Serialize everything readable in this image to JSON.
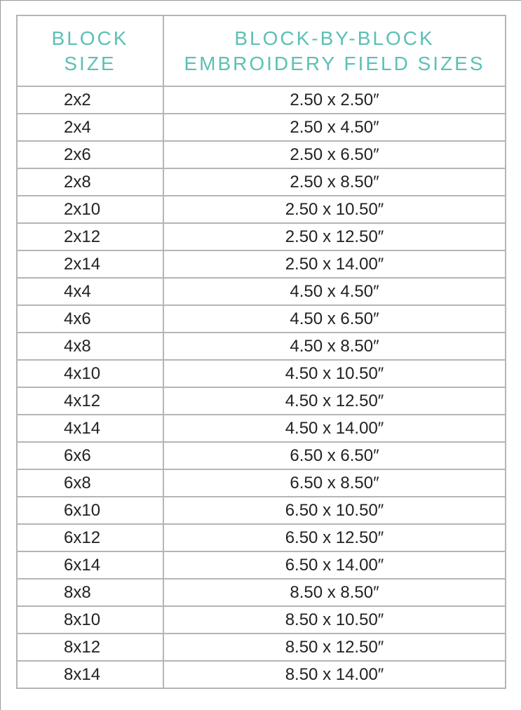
{
  "header": {
    "col1_line1": "BLOCK",
    "col1_line2": "SIZE",
    "col2_line1": "BLOCK-BY-BLOCK",
    "col2_line2": "EMBROIDERY FIELD SIZES"
  },
  "accent_color": "#5cc0b6",
  "rows": [
    [
      "2x2",
      "2.50 x 2.50″"
    ],
    [
      "2x4",
      "2.50 x 4.50″"
    ],
    [
      "2x6",
      "2.50 x 6.50″"
    ],
    [
      "2x8",
      "2.50 x 8.50″"
    ],
    [
      "2x10",
      "2.50 x 10.50″"
    ],
    [
      "2x12",
      "2.50 x 12.50″"
    ],
    [
      "2x14",
      "2.50 x 14.00″"
    ],
    [
      "4x4",
      "4.50 x 4.50″"
    ],
    [
      "4x6",
      "4.50 x 6.50″"
    ],
    [
      "4x8",
      "4.50 x 8.50″"
    ],
    [
      "4x10",
      "4.50 x 10.50″"
    ],
    [
      "4x12",
      "4.50 x 12.50″"
    ],
    [
      "4x14",
      "4.50 x 14.00″"
    ],
    [
      "6x6",
      "6.50 x 6.50″"
    ],
    [
      "6x8",
      "6.50 x 8.50″"
    ],
    [
      "6x10",
      "6.50 x 10.50″"
    ],
    [
      "6x12",
      "6.50 x 12.50″"
    ],
    [
      "6x14",
      "6.50 x 14.00″"
    ],
    [
      "8x8",
      "8.50 x 8.50″"
    ],
    [
      "8x10",
      "8.50 x 10.50″"
    ],
    [
      "8x12",
      "8.50 x 12.50″"
    ],
    [
      "8x14",
      "8.50 x 14.00″"
    ]
  ]
}
